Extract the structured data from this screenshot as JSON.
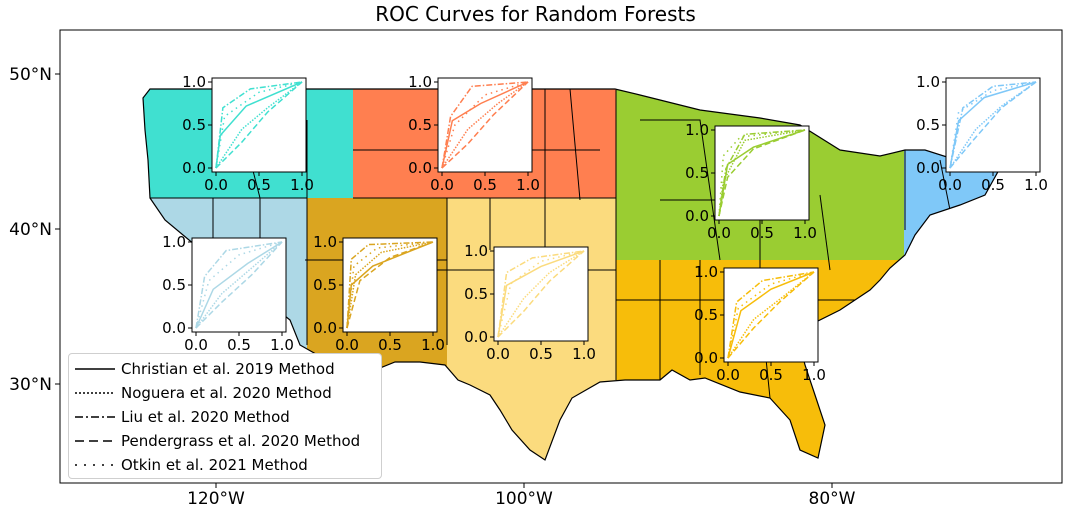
{
  "title": "ROC Curves for Random Forests",
  "map": {
    "lon_ticks": [
      "120°W",
      "100°W",
      "80°W"
    ],
    "lat_ticks": [
      "50°N",
      "40°N",
      "30°N"
    ],
    "background": "#ffffff"
  },
  "legend": {
    "placement": "lower-left",
    "entries": [
      {
        "label": "Christian et al. 2019 Method",
        "dash": "solid"
      },
      {
        "label": "Noguera et al. 2020 Method",
        "dash": "dotted"
      },
      {
        "label": "Liu et al. 2020 Method",
        "dash": "dashdot"
      },
      {
        "label": "Pendergrass et al. 2020 Method",
        "dash": "dashed"
      },
      {
        "label": "Otkin et al. 2021 Method",
        "dash": "loosely-dotted"
      }
    ]
  },
  "chart_data": [
    {
      "type": "line",
      "region": "northwest",
      "color": "#40E0D0",
      "xlim": [
        0,
        1
      ],
      "ylim": [
        0,
        1
      ],
      "x_ticks": [
        "0.0",
        "0.5",
        "1.0"
      ],
      "y_ticks": [
        "0.0",
        "0.5",
        "1.0"
      ],
      "series": [
        {
          "name": "Christian et al. 2019 Method",
          "x": [
            0,
            0.05,
            0.35,
            1
          ],
          "y": [
            0,
            0.38,
            0.72,
            1
          ]
        },
        {
          "name": "Noguera et al. 2020 Method",
          "x": [
            0,
            0.3,
            0.6,
            1
          ],
          "y": [
            0,
            0.45,
            0.7,
            1
          ]
        },
        {
          "name": "Liu et al. 2020 Method",
          "x": [
            0,
            0.08,
            0.4,
            1
          ],
          "y": [
            0,
            0.7,
            0.92,
            1
          ]
        },
        {
          "name": "Pendergrass et al. 2020 Method",
          "x": [
            0,
            0.3,
            0.6,
            1
          ],
          "y": [
            0,
            0.3,
            0.65,
            1
          ]
        },
        {
          "name": "Otkin et al. 2021 Method",
          "x": [
            0,
            0.1,
            0.5,
            1
          ],
          "y": [
            0,
            0.6,
            0.88,
            1
          ]
        }
      ]
    },
    {
      "type": "line",
      "region": "northern-plains",
      "color": "#FF7F50",
      "xlim": [
        0,
        1
      ],
      "ylim": [
        0,
        1
      ],
      "x_ticks": [
        "0.0",
        "0.5",
        "1.0"
      ],
      "y_ticks": [
        "0.0",
        "0.5",
        "1.0"
      ],
      "series": [
        {
          "name": "Christian et al. 2019 Method",
          "x": [
            0,
            0.12,
            0.45,
            1
          ],
          "y": [
            0,
            0.55,
            0.75,
            1
          ]
        },
        {
          "name": "Noguera et al. 2020 Method",
          "x": [
            0,
            0.3,
            0.65,
            1
          ],
          "y": [
            0,
            0.45,
            0.75,
            1
          ]
        },
        {
          "name": "Liu et al. 2020 Method",
          "x": [
            0,
            0.1,
            0.35,
            1
          ],
          "y": [
            0,
            0.6,
            0.95,
            1
          ]
        },
        {
          "name": "Pendergrass et al. 2020 Method",
          "x": [
            0,
            0.3,
            0.6,
            1
          ],
          "y": [
            0,
            0.28,
            0.62,
            1
          ]
        },
        {
          "name": "Otkin et al. 2021 Method",
          "x": [
            0,
            0.15,
            0.5,
            1
          ],
          "y": [
            0,
            0.5,
            0.85,
            1
          ]
        }
      ]
    },
    {
      "type": "line",
      "region": "midwest",
      "color": "#9ACD32",
      "xlim": [
        0,
        1
      ],
      "ylim": [
        0,
        1
      ],
      "x_ticks": [
        "0.0",
        "0.5",
        "1.0"
      ],
      "y_ticks": [
        "0.0",
        "0.5",
        "1.0"
      ],
      "series": [
        {
          "name": "Christian et al. 2019 Method",
          "x": [
            0,
            0.1,
            0.4,
            1
          ],
          "y": [
            0,
            0.6,
            0.8,
            1
          ]
        },
        {
          "name": "Noguera et al. 2020 Method",
          "x": [
            0,
            0.05,
            0.3,
            1
          ],
          "y": [
            0,
            0.4,
            0.88,
            1
          ]
        },
        {
          "name": "Liu et al. 2020 Method",
          "x": [
            0,
            0.08,
            0.3,
            1
          ],
          "y": [
            0,
            0.55,
            0.95,
            1
          ]
        },
        {
          "name": "Pendergrass et al. 2020 Method",
          "x": [
            0,
            0.1,
            0.4,
            1
          ],
          "y": [
            0,
            0.45,
            0.78,
            1
          ]
        },
        {
          "name": "Otkin et al. 2021 Method",
          "x": [
            0,
            0.05,
            0.25,
            1
          ],
          "y": [
            0,
            0.7,
            0.92,
            1
          ]
        }
      ]
    },
    {
      "type": "line",
      "region": "northeast",
      "color": "#7FC8F8",
      "xlim": [
        0,
        1
      ],
      "ylim": [
        0,
        1
      ],
      "x_ticks": [
        "0.0",
        "0.5",
        "1.0"
      ],
      "y_ticks": [
        "0.0",
        "0.5",
        "1.0"
      ],
      "series": [
        {
          "name": "Christian et al. 2019 Method",
          "x": [
            0,
            0.1,
            0.4,
            1
          ],
          "y": [
            0,
            0.55,
            0.82,
            1
          ]
        },
        {
          "name": "Noguera et al. 2020 Method",
          "x": [
            0,
            0.3,
            0.6,
            1
          ],
          "y": [
            0,
            0.45,
            0.72,
            1
          ]
        },
        {
          "name": "Liu et al. 2020 Method",
          "x": [
            0,
            0.15,
            0.5,
            1
          ],
          "y": [
            0,
            0.7,
            0.95,
            1
          ]
        },
        {
          "name": "Pendergrass et al. 2020 Method",
          "x": [
            0,
            0.25,
            0.6,
            1
          ],
          "y": [
            0,
            0.3,
            0.7,
            1
          ]
        },
        {
          "name": "Otkin et al. 2021 Method",
          "x": [
            0,
            0.1,
            0.5,
            1
          ],
          "y": [
            0,
            0.65,
            0.9,
            1
          ]
        }
      ]
    },
    {
      "type": "line",
      "region": "west",
      "color": "#ADD8E6",
      "xlim": [
        0,
        1
      ],
      "ylim": [
        0,
        1
      ],
      "x_ticks": [
        "0.0",
        "0.5",
        "1.0"
      ],
      "y_ticks": [
        "0.0",
        "0.5",
        "1.0"
      ],
      "series": [
        {
          "name": "Christian et al. 2019 Method",
          "x": [
            0,
            0.2,
            0.6,
            1
          ],
          "y": [
            0,
            0.45,
            0.75,
            1
          ]
        },
        {
          "name": "Noguera et al. 2020 Method",
          "x": [
            0,
            0.3,
            0.65,
            1
          ],
          "y": [
            0,
            0.4,
            0.7,
            1
          ]
        },
        {
          "name": "Liu et al. 2020 Method",
          "x": [
            0,
            0.1,
            0.35,
            1
          ],
          "y": [
            0,
            0.6,
            0.9,
            1
          ]
        },
        {
          "name": "Pendergrass et al. 2020 Method",
          "x": [
            0,
            0.3,
            0.65,
            1
          ],
          "y": [
            0,
            0.3,
            0.62,
            1
          ]
        },
        {
          "name": "Otkin et al. 2021 Method",
          "x": [
            0,
            0.15,
            0.5,
            1
          ],
          "y": [
            0,
            0.55,
            0.85,
            1
          ]
        }
      ]
    },
    {
      "type": "line",
      "region": "southwest",
      "color": "#DAA520",
      "xlim": [
        0,
        1
      ],
      "ylim": [
        0,
        1
      ],
      "x_ticks": [
        "0.0",
        "0.5",
        "1.0"
      ],
      "y_ticks": [
        "0.0",
        "0.5",
        "1.0"
      ],
      "series": [
        {
          "name": "Christian et al. 2019 Method",
          "x": [
            0,
            0.05,
            0.3,
            1
          ],
          "y": [
            0,
            0.5,
            0.72,
            1
          ]
        },
        {
          "name": "Noguera et al. 2020 Method",
          "x": [
            0,
            0.1,
            0.4,
            1
          ],
          "y": [
            0,
            0.62,
            0.88,
            1
          ]
        },
        {
          "name": "Liu et al. 2020 Method",
          "x": [
            0,
            0.05,
            0.25,
            1
          ],
          "y": [
            0,
            0.8,
            0.97,
            1
          ]
        },
        {
          "name": "Pendergrass et al. 2020 Method",
          "x": [
            0,
            0.15,
            0.5,
            1
          ],
          "y": [
            0,
            0.55,
            0.82,
            1
          ]
        },
        {
          "name": "Otkin et al. 2021 Method",
          "x": [
            0,
            0.08,
            0.35,
            1
          ],
          "y": [
            0,
            0.72,
            0.93,
            1
          ]
        }
      ]
    },
    {
      "type": "line",
      "region": "southern-plains",
      "color": "#FBDB7E",
      "xlim": [
        0,
        1
      ],
      "ylim": [
        0,
        1
      ],
      "x_ticks": [
        "0.0",
        "0.5",
        "1.0"
      ],
      "y_ticks": [
        "0.0",
        "0.5",
        "1.0"
      ],
      "series": [
        {
          "name": "Christian et al. 2019 Method",
          "x": [
            0,
            0.1,
            0.5,
            1
          ],
          "y": [
            0,
            0.6,
            0.82,
            1
          ]
        },
        {
          "name": "Noguera et al. 2020 Method",
          "x": [
            0,
            0.3,
            0.6,
            1
          ],
          "y": [
            0,
            0.45,
            0.75,
            1
          ]
        },
        {
          "name": "Liu et al. 2020 Method",
          "x": [
            0,
            0.1,
            0.4,
            1
          ],
          "y": [
            0,
            0.75,
            0.92,
            1
          ]
        },
        {
          "name": "Pendergrass et al. 2020 Method",
          "x": [
            0,
            0.3,
            0.6,
            1
          ],
          "y": [
            0,
            0.3,
            0.65,
            1
          ]
        },
        {
          "name": "Otkin et al. 2021 Method",
          "x": [
            0,
            0.15,
            0.5,
            1
          ],
          "y": [
            0,
            0.62,
            0.88,
            1
          ]
        }
      ]
    },
    {
      "type": "line",
      "region": "southeast",
      "color": "#F7BD0A",
      "xlim": [
        0,
        1
      ],
      "ylim": [
        0,
        1
      ],
      "x_ticks": [
        "0.0",
        "0.5",
        "1.0"
      ],
      "y_ticks": [
        "0.0",
        "0.5",
        "1.0"
      ],
      "series": [
        {
          "name": "Christian et al. 2019 Method",
          "x": [
            0,
            0.15,
            0.5,
            1
          ],
          "y": [
            0,
            0.55,
            0.8,
            1
          ]
        },
        {
          "name": "Noguera et al. 2020 Method",
          "x": [
            0,
            0.3,
            0.65,
            1
          ],
          "y": [
            0,
            0.45,
            0.72,
            1
          ]
        },
        {
          "name": "Liu et al. 2020 Method",
          "x": [
            0,
            0.1,
            0.4,
            1
          ],
          "y": [
            0,
            0.65,
            0.9,
            1
          ]
        },
        {
          "name": "Pendergrass et al. 2020 Method",
          "x": [
            0,
            0.3,
            0.6,
            1
          ],
          "y": [
            0,
            0.35,
            0.65,
            1
          ]
        },
        {
          "name": "Otkin et al. 2021 Method",
          "x": [
            0,
            0.12,
            0.5,
            1
          ],
          "y": [
            0,
            0.58,
            0.86,
            1
          ]
        }
      ]
    }
  ]
}
